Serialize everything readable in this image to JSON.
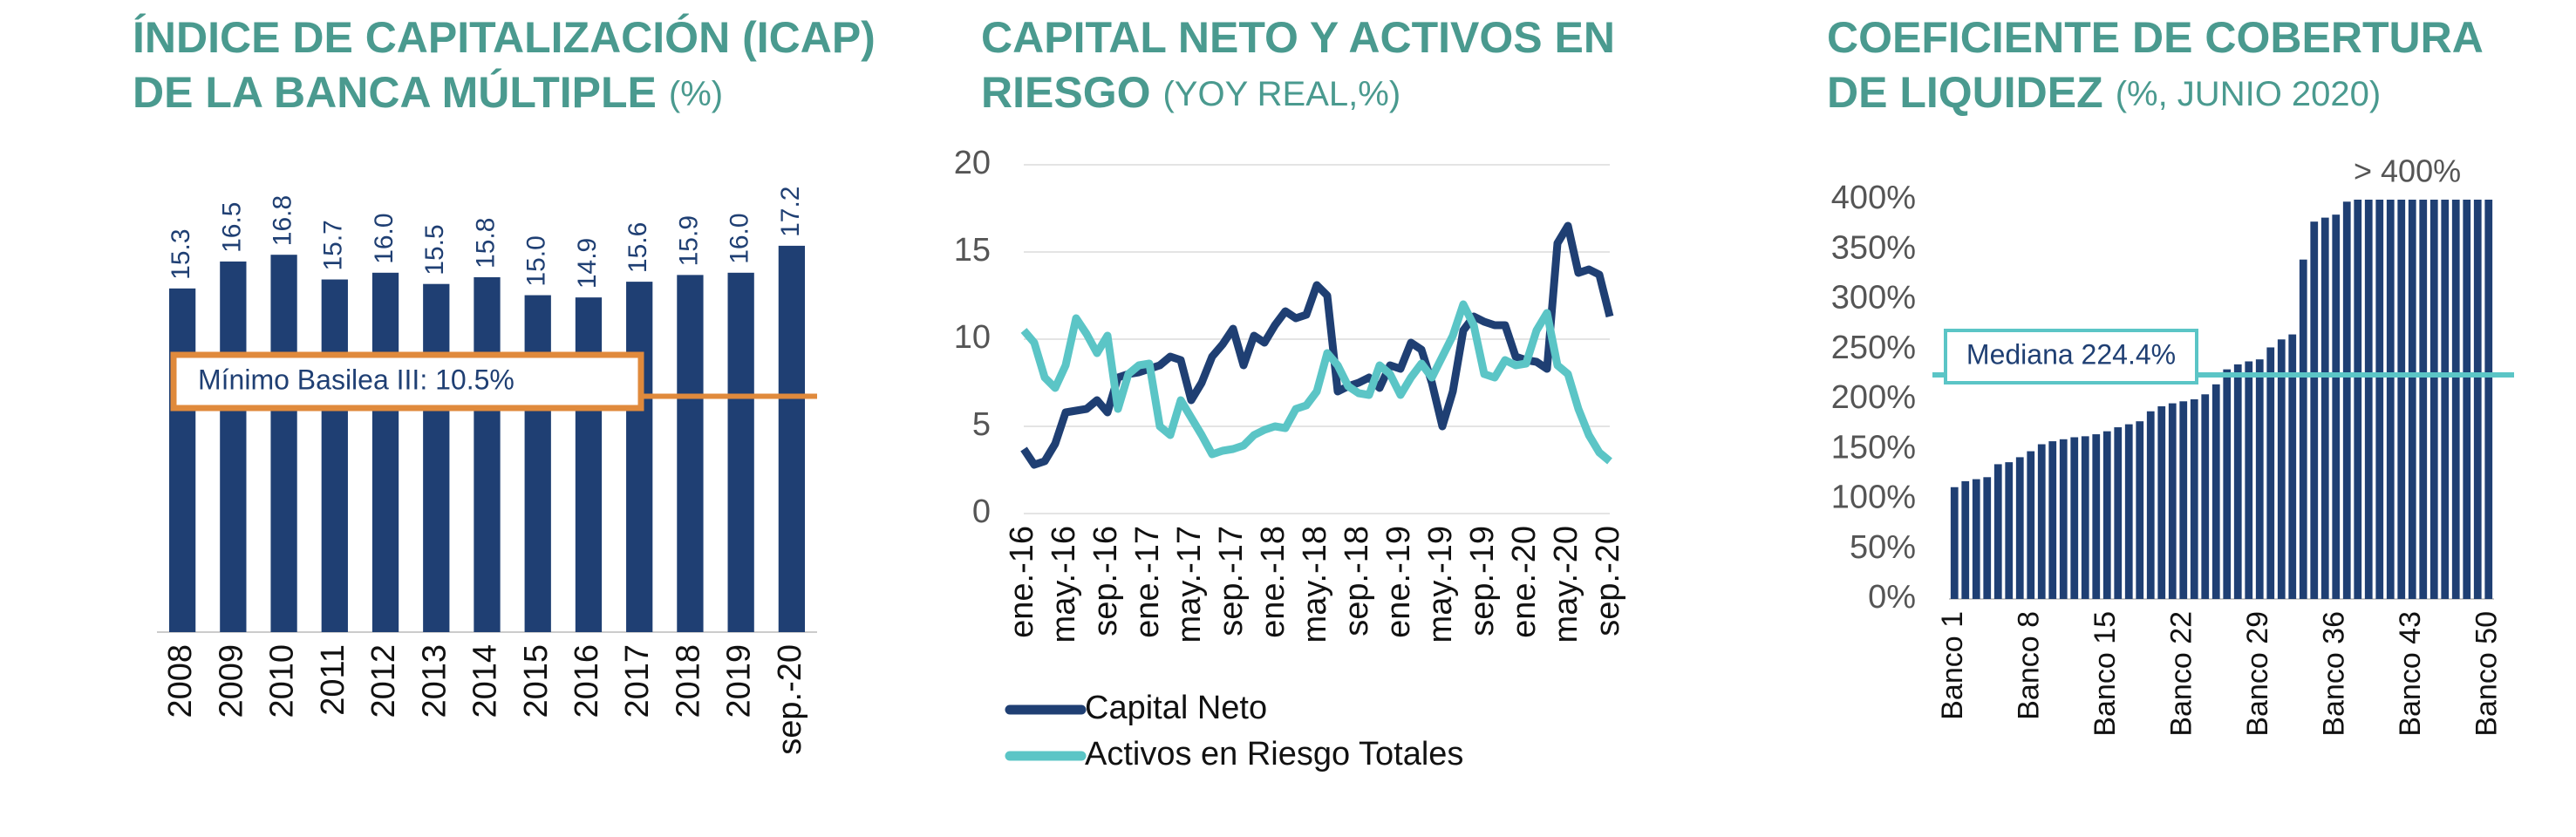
{
  "chart_data": [
    {
      "type": "bar",
      "title": [
        "ÍNDICE DE CAPITALIZACIÓN (ICAP)",
        "DE LA BANCA MÚLTIPLE"
      ],
      "title_unit": "(%)",
      "categories": [
        "2008",
        "2009",
        "2010",
        "2011",
        "2012",
        "2013",
        "2014",
        "2015",
        "2016",
        "2017",
        "2018",
        "2019",
        "sep.-20"
      ],
      "values": [
        15.3,
        16.5,
        16.8,
        15.7,
        16.0,
        15.5,
        15.8,
        15.0,
        14.9,
        15.6,
        15.9,
        16.0,
        17.2
      ],
      "value_labels": [
        "15.3",
        "16.5",
        "16.8",
        "15.7",
        "16.0",
        "15.5",
        "15.8",
        "15.0",
        "14.9",
        "15.6",
        "15.9",
        "16.0",
        "17.2"
      ],
      "color": "#1f3f73",
      "ylim": [
        0,
        21
      ],
      "reference_line": {
        "value": 10.5,
        "label": "Mínimo Basilea III: 10.5%",
        "color": "#e08a3c"
      }
    },
    {
      "type": "line",
      "title": [
        "CAPITAL NETO Y ACTIVOS  EN",
        "RIESGO"
      ],
      "title_unit": "(YOY REAL,%)",
      "categories": [
        "ene.-16",
        null,
        null,
        null,
        "may.-16",
        null,
        null,
        null,
        "sep.-16",
        null,
        null,
        null,
        "ene.-17",
        null,
        null,
        null,
        "may.-17",
        null,
        null,
        null,
        "sep.-17",
        null,
        null,
        null,
        "ene.-18",
        null,
        null,
        null,
        "may.-18",
        null,
        null,
        null,
        "sep.-18",
        null,
        null,
        null,
        "ene.-19",
        null,
        null,
        null,
        "may.-19",
        null,
        null,
        null,
        "sep.-19",
        null,
        null,
        null,
        "ene.-20",
        null,
        null,
        null,
        "may.-20",
        null,
        null,
        null,
        "sep.-20"
      ],
      "series": [
        {
          "name": "Capital Neto",
          "color": "#1f3f73",
          "values": [
            3.7,
            2.8,
            3.0,
            4.0,
            5.8,
            5.9,
            6.0,
            6.5,
            5.8,
            7.8,
            8.0,
            8.1,
            8.3,
            8.5,
            9.0,
            8.8,
            6.5,
            7.5,
            9.0,
            9.7,
            10.6,
            8.5,
            10.2,
            9.8,
            10.8,
            11.6,
            11.2,
            11.4,
            13.1,
            12.5,
            7.0,
            7.3,
            7.5,
            7.8,
            7.2,
            8.5,
            8.3,
            9.8,
            9.4,
            7.5,
            5.0,
            7.0,
            10.5,
            11.3,
            11.0,
            10.8,
            10.8,
            9.0,
            8.8,
            8.7,
            8.3,
            15.5,
            16.5,
            13.8,
            14.0,
            13.7,
            11.3
          ]
        },
        {
          "name": "Activos en Riesgo Totales",
          "color": "#5bc5c6",
          "values": [
            10.5,
            9.8,
            7.8,
            7.2,
            8.5,
            11.2,
            10.3,
            9.2,
            10.2,
            6.0,
            8.0,
            8.5,
            8.6,
            5.0,
            4.5,
            6.5,
            5.5,
            4.5,
            3.4,
            3.6,
            3.7,
            3.9,
            4.5,
            4.8,
            5.0,
            4.9,
            6.0,
            6.2,
            7.0,
            9.2,
            8.5,
            7.3,
            6.9,
            6.8,
            8.5,
            8.0,
            6.8,
            7.8,
            8.6,
            7.8,
            9.0,
            10.2,
            12.0,
            10.8,
            8.0,
            7.8,
            8.8,
            8.5,
            8.6,
            10.5,
            11.5,
            8.5,
            8.0,
            6.0,
            4.5,
            3.5,
            3.0
          ]
        }
      ],
      "ylim": [
        0,
        20
      ],
      "yticks": [
        0,
        5,
        10,
        15,
        20
      ],
      "grid": true
    },
    {
      "type": "bar",
      "title": [
        "COEFICIENTE DE COBERTURA",
        "DE LIQUIDEZ"
      ],
      "title_unit": "(%, JUNIO 2020)",
      "categories": [
        "Banco 1",
        null,
        null,
        null,
        null,
        null,
        null,
        "Banco 8",
        null,
        null,
        null,
        null,
        null,
        null,
        "Banco 15",
        null,
        null,
        null,
        null,
        null,
        null,
        "Banco 22",
        null,
        null,
        null,
        null,
        null,
        null,
        "Banco 29",
        null,
        null,
        null,
        null,
        null,
        null,
        "Banco 36",
        null,
        null,
        null,
        null,
        null,
        null,
        "Banco 43",
        null,
        null,
        null,
        null,
        null,
        null,
        "Banco 50"
      ],
      "values": [
        112,
        118,
        120,
        122,
        135,
        137,
        142,
        148,
        155,
        158,
        160,
        162,
        163,
        165,
        168,
        172,
        175,
        178,
        188,
        193,
        196,
        198,
        200,
        205,
        215,
        230,
        235,
        238,
        240,
        252,
        260,
        265,
        340,
        378,
        382,
        385,
        398,
        400,
        400,
        400,
        400,
        400,
        400,
        400,
        400,
        400,
        400,
        400,
        400,
        400
      ],
      "color": "#1f3f73",
      "ylim": [
        0,
        400
      ],
      "yticks": [
        {
          "value": 0,
          "label": "0%"
        },
        {
          "value": 50,
          "label": "50%"
        },
        {
          "value": 100,
          "label": "100%"
        },
        {
          "value": 150,
          "label": "150%"
        },
        {
          "value": 200,
          "label": "200%"
        },
        {
          "value": 250,
          "label": "250%"
        },
        {
          "value": 300,
          "label": "300%"
        },
        {
          "value": 350,
          "label": "350%"
        },
        {
          "value": 400,
          "label": "400%"
        }
      ],
      "grid": false,
      "reference_line": {
        "value": 224.4,
        "label": "Mediana 224.4%",
        "color": "#5bc5c6"
      },
      "annotation": "> 400%"
    }
  ]
}
